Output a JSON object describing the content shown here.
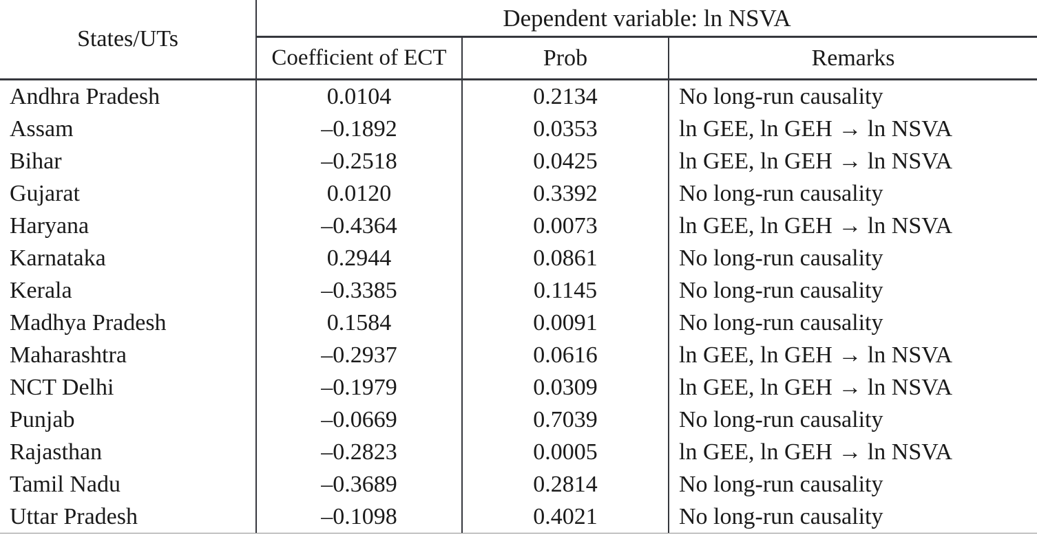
{
  "colors": {
    "ink": "#1a1a1a",
    "rule": "#35373d",
    "thin_rule": "#8d8d8d",
    "background": "#ffffff"
  },
  "table": {
    "col1_header": "States/UTs",
    "span_header": "Dependent variable: ln NSVA",
    "sub_headers": {
      "coefficient": "Coefficient of ECT",
      "prob": "Prob",
      "remarks": "Remarks"
    },
    "rows": [
      {
        "state": "Andhra Pradesh",
        "coefficient": "0.0104",
        "prob": "0.2134",
        "remarks": "No long-run causality"
      },
      {
        "state": "Assam",
        "coefficient": "–0.1892",
        "prob": "0.0353",
        "remarks": "ln GEE, ln GEH → ln NSVA"
      },
      {
        "state": "Bihar",
        "coefficient": "–0.2518",
        "prob": "0.0425",
        "remarks": "ln GEE, ln GEH → ln NSVA"
      },
      {
        "state": "Gujarat",
        "coefficient": "0.0120",
        "prob": "0.3392",
        "remarks": "No long-run causality"
      },
      {
        "state": "Haryana",
        "coefficient": "–0.4364",
        "prob": "0.0073",
        "remarks": "ln GEE, ln GEH → ln NSVA"
      },
      {
        "state": "Karnataka",
        "coefficient": "0.2944",
        "prob": "0.0861",
        "remarks": "No long-run causality"
      },
      {
        "state": "Kerala",
        "coefficient": "–0.3385",
        "prob": "0.1145",
        "remarks": "No long-run causality"
      },
      {
        "state": "Madhya Pradesh",
        "coefficient": "0.1584",
        "prob": "0.0091",
        "remarks": "No long-run causality"
      },
      {
        "state": "Maharashtra",
        "coefficient": "–0.2937",
        "prob": "0.0616",
        "remarks": "ln GEE, ln GEH → ln NSVA"
      },
      {
        "state": "NCT Delhi",
        "coefficient": "–0.1979",
        "prob": "0.0309",
        "remarks": "ln GEE, ln GEH → ln NSVA"
      },
      {
        "state": "Punjab",
        "coefficient": "–0.0669",
        "prob": "0.7039",
        "remarks": "No long-run causality"
      },
      {
        "state": "Rajasthan",
        "coefficient": "–0.2823",
        "prob": "0.0005",
        "remarks": "ln GEE, ln GEH → ln NSVA"
      },
      {
        "state": "Tamil Nadu",
        "coefficient": "–0.3689",
        "prob": "0.2814",
        "remarks": "No long-run causality"
      },
      {
        "state": "Uttar Pradesh",
        "coefficient": "–0.1098",
        "prob": "0.4021",
        "remarks": "No long-run causality"
      }
    ]
  },
  "chart_data": {
    "type": "table",
    "title": "Dependent variable: ln NSVA",
    "columns": [
      "States/UTs",
      "Coefficient of ECT",
      "Prob",
      "Remarks"
    ],
    "rows": [
      [
        "Andhra Pradesh",
        0.0104,
        0.2134,
        "No long-run causality"
      ],
      [
        "Assam",
        -0.1892,
        0.0353,
        "ln GEE, ln GEH → ln NSVA"
      ],
      [
        "Bihar",
        -0.2518,
        0.0425,
        "ln GEE, ln GEH → ln NSVA"
      ],
      [
        "Gujarat",
        0.012,
        0.3392,
        "No long-run causality"
      ],
      [
        "Haryana",
        -0.4364,
        0.0073,
        "ln GEE, ln GEH → ln NSVA"
      ],
      [
        "Karnataka",
        0.2944,
        0.0861,
        "No long-run causality"
      ],
      [
        "Kerala",
        -0.3385,
        0.1145,
        "No long-run causality"
      ],
      [
        "Madhya Pradesh",
        0.1584,
        0.0091,
        "No long-run causality"
      ],
      [
        "Maharashtra",
        -0.2937,
        0.0616,
        "ln GEE, ln GEH → ln NSVA"
      ],
      [
        "NCT Delhi",
        -0.1979,
        0.0309,
        "ln GEE, ln GEH → ln NSVA"
      ],
      [
        "Punjab",
        -0.0669,
        0.7039,
        "No long-run causality"
      ],
      [
        "Rajasthan",
        -0.2823,
        0.0005,
        "ln GEE, ln GEH → ln NSVA"
      ],
      [
        "Tamil Nadu",
        -0.3689,
        0.2814,
        "No long-run causality"
      ],
      [
        "Uttar Pradesh",
        -0.1098,
        0.4021,
        "No long-run causality"
      ]
    ]
  }
}
